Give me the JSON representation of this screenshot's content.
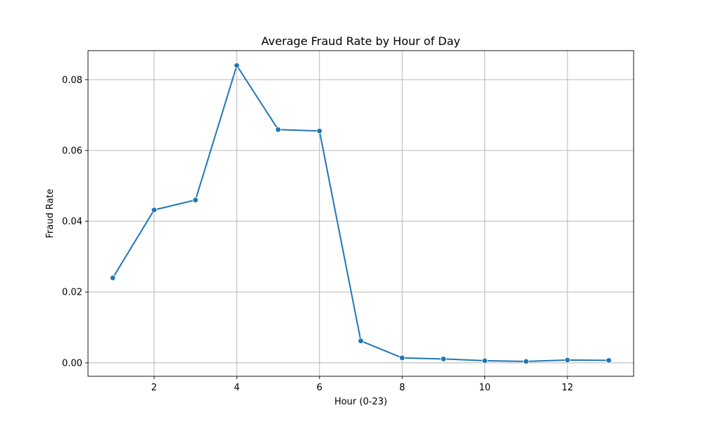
{
  "chart_data": {
    "type": "line",
    "title": "Average Fraud Rate by Hour of Day",
    "xlabel": "Hour (0-23)",
    "ylabel": "Fraud Rate",
    "x": [
      1,
      2,
      3,
      4,
      5,
      6,
      7,
      8,
      9,
      10,
      11,
      12,
      13
    ],
    "series": [
      {
        "values": [
          0.024,
          0.0432,
          0.046,
          0.084,
          0.0659,
          0.0655,
          0.0062,
          0.0014,
          0.0011,
          0.0006,
          0.0004,
          0.0008,
          0.0007
        ],
        "color": "#1f77b4"
      }
    ],
    "xlim": [
      0.4,
      13.6
    ],
    "ylim": [
      -0.0038,
      0.0882
    ],
    "xticks": [
      2,
      4,
      6,
      8,
      10,
      12
    ],
    "xtick_labels": [
      "2",
      "4",
      "6",
      "8",
      "10",
      "12"
    ],
    "yticks": [
      0.0,
      0.02,
      0.04,
      0.06,
      0.08
    ],
    "ytick_labels": [
      "0.00",
      "0.02",
      "0.04",
      "0.06",
      "0.08"
    ],
    "grid": true,
    "markers": true
  }
}
